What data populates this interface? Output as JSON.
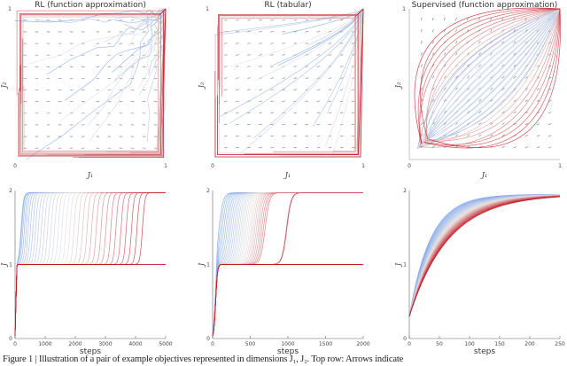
{
  "caption": "Figure 1 | Illustration of a pair of example objectives represented in dimensions J₁, J₂. Top row: Arrows indicate",
  "colors": {
    "low": "#7aa3ee",
    "mid": "#e6e1dd",
    "high": "#c1121f",
    "arrow": "#555555"
  },
  "chart_data": [
    {
      "type": "line",
      "title": "RL (function approximation)",
      "xlabel": "J₁",
      "ylabel": "J₂",
      "xlim": [
        0,
        1
      ],
      "ylim": [
        0,
        1
      ],
      "xticks": [
        "0",
        "1"
      ],
      "yticks": [
        "1"
      ],
      "overlay": "vector field with trajectories, coolwarm colored"
    },
    {
      "type": "line",
      "title": "RL (tabular)",
      "xlabel": "J₁",
      "ylabel": "J₂",
      "xlim": [
        0,
        1
      ],
      "ylim": [
        0,
        1
      ],
      "xticks": [
        "0",
        "1"
      ],
      "yticks": [
        "1"
      ],
      "overlay": "vector field with trajectories, coolwarm colored"
    },
    {
      "type": "line",
      "title": "Supervised (function approximation)",
      "xlabel": "J₁",
      "ylabel": "J₂",
      "xlim": [
        0,
        1
      ],
      "ylim": [
        0,
        1
      ],
      "xticks": [
        "0",
        "1"
      ],
      "yticks": [
        "1"
      ],
      "overlay": "vector field with trajectories, coolwarm colored"
    },
    {
      "type": "line",
      "xlabel": "steps",
      "ylabel": "J",
      "xlim": [
        0,
        5000
      ],
      "ylim": [
        0,
        2
      ],
      "xticks": [
        "0",
        "1000",
        "2000",
        "3000",
        "4000",
        "5000"
      ],
      "yticks": [
        "0",
        "1",
        "2"
      ]
    },
    {
      "type": "line",
      "xlabel": "steps",
      "ylabel": "J",
      "xlim": [
        0,
        2000
      ],
      "ylim": [
        0,
        2
      ],
      "xticks": [
        "0",
        "500",
        "1000",
        "1500",
        "2000"
      ],
      "yticks": [
        "0",
        "1",
        "2"
      ]
    },
    {
      "type": "line",
      "xlabel": "steps",
      "ylabel": "J",
      "xlim": [
        0,
        250
      ],
      "ylim": [
        0,
        2
      ],
      "xticks": [
        "0",
        "50",
        "100",
        "150",
        "200",
        "250"
      ],
      "yticks": [
        "0",
        "1",
        "2"
      ]
    }
  ]
}
